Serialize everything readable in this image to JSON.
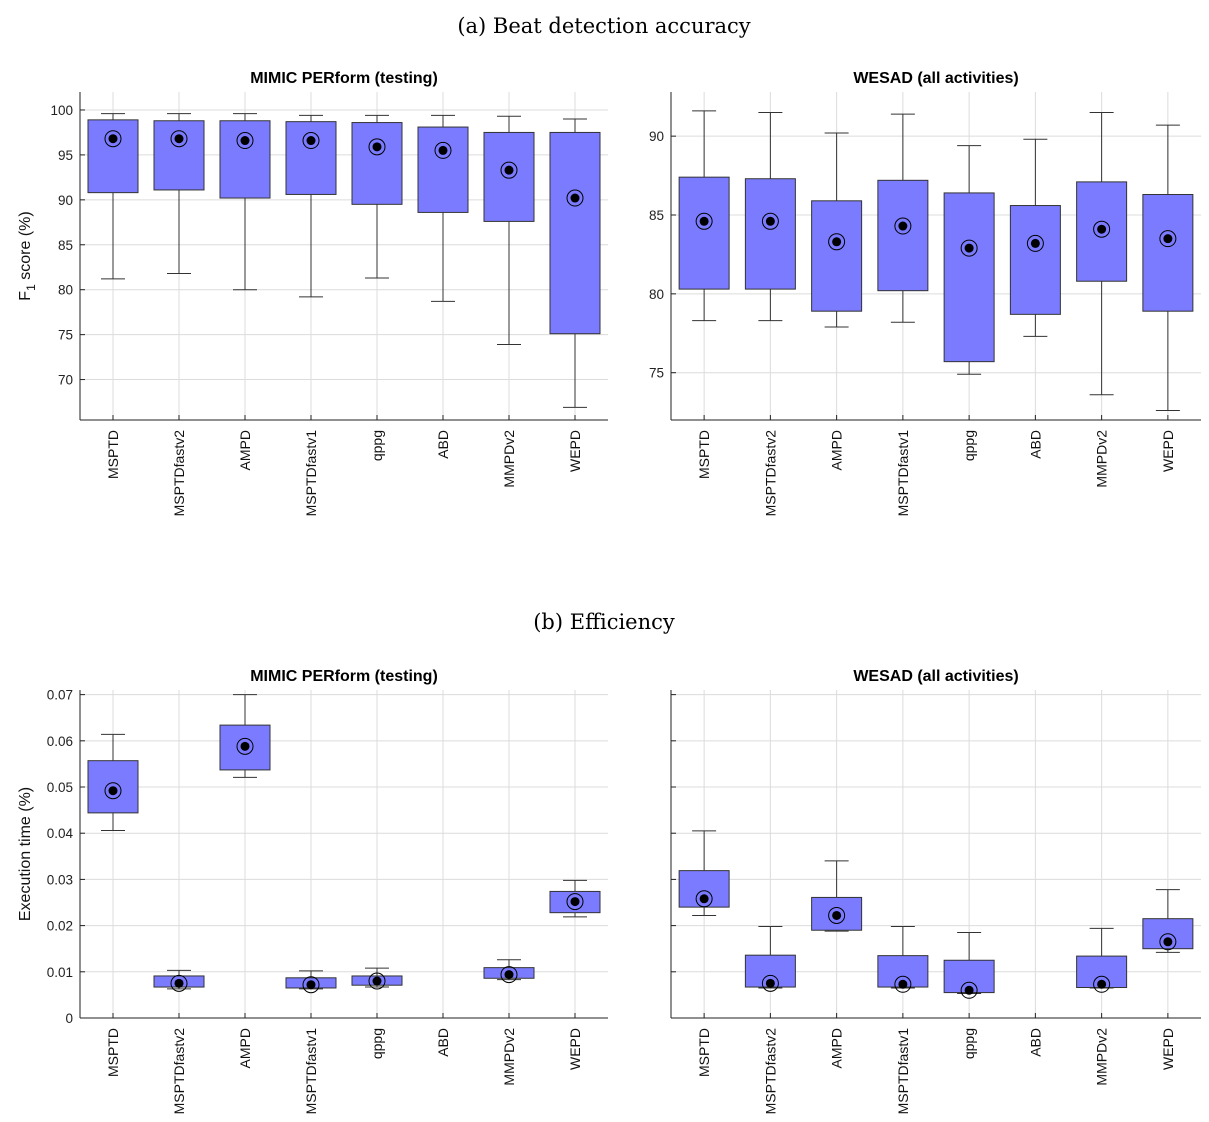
{
  "sections": [
    {
      "title": "(a) Beat detection accuracy"
    },
    {
      "title": "(b) Efficiency"
    }
  ],
  "chart_data": [
    {
      "type": "box",
      "title": "MIMIC PERform (testing)",
      "ylabel": "F1 score (%)",
      "ylabel_main": "F",
      "ylabel_sub": "1",
      "ylabel_rest": " score (%)",
      "ylim": [
        65.5,
        102
      ],
      "yticks": [
        70,
        75,
        80,
        85,
        90,
        95,
        100
      ],
      "ytick_labels": [
        "70",
        "75",
        "80",
        "85",
        "90",
        "95",
        "100"
      ],
      "grid": true,
      "categories": [
        "MSPTD",
        "MSPTDfastv2",
        "AMPD",
        "MSPTDfastv1",
        "qppg",
        "ABD",
        "MMPDv2",
        "WEPD"
      ],
      "boxes": [
        {
          "min": 81.2,
          "q1": 90.8,
          "median": 96.8,
          "q3": 98.9,
          "max": 99.6
        },
        {
          "min": 81.8,
          "q1": 91.1,
          "median": 96.8,
          "q3": 98.8,
          "max": 99.6
        },
        {
          "min": 80.0,
          "q1": 90.2,
          "median": 96.6,
          "q3": 98.8,
          "max": 99.6
        },
        {
          "min": 79.2,
          "q1": 90.6,
          "median": 96.6,
          "q3": 98.7,
          "max": 99.4
        },
        {
          "min": 81.3,
          "q1": 89.5,
          "median": 95.9,
          "q3": 98.6,
          "max": 99.4
        },
        {
          "min": 78.7,
          "q1": 88.6,
          "median": 95.5,
          "q3": 98.1,
          "max": 99.4
        },
        {
          "min": 73.9,
          "q1": 87.6,
          "median": 93.3,
          "q3": 97.5,
          "max": 99.3
        },
        {
          "min": 66.9,
          "q1": 75.1,
          "median": 90.2,
          "q3": 97.5,
          "max": 99.0
        }
      ]
    },
    {
      "type": "box",
      "title": "WESAD (all activities)",
      "ylabel": "",
      "ylim": [
        72.0,
        92.8
      ],
      "yticks": [
        75,
        80,
        85,
        90
      ],
      "ytick_labels": [
        "75",
        "80",
        "85",
        "90"
      ],
      "grid": true,
      "categories": [
        "MSPTD",
        "MSPTDfastv2",
        "AMPD",
        "MSPTDfastv1",
        "qppg",
        "ABD",
        "MMPDv2",
        "WEPD"
      ],
      "boxes": [
        {
          "min": 78.3,
          "q1": 80.3,
          "median": 84.6,
          "q3": 87.4,
          "max": 91.6
        },
        {
          "min": 78.3,
          "q1": 80.3,
          "median": 84.6,
          "q3": 87.3,
          "max": 91.5
        },
        {
          "min": 77.9,
          "q1": 78.9,
          "median": 83.3,
          "q3": 85.9,
          "max": 90.2
        },
        {
          "min": 78.2,
          "q1": 80.2,
          "median": 84.3,
          "q3": 87.2,
          "max": 91.4
        },
        {
          "min": 74.9,
          "q1": 75.7,
          "median": 82.9,
          "q3": 86.4,
          "max": 89.4
        },
        {
          "min": 77.3,
          "q1": 78.7,
          "median": 83.2,
          "q3": 85.6,
          "max": 89.8
        },
        {
          "min": 73.6,
          "q1": 80.8,
          "median": 84.1,
          "q3": 87.1,
          "max": 91.5
        },
        {
          "min": 72.6,
          "q1": 78.9,
          "median": 83.5,
          "q3": 86.3,
          "max": 90.7
        }
      ]
    },
    {
      "type": "box",
      "title": "MIMIC PERform (testing)",
      "ylabel": "Execution time (%)",
      "ylim": [
        0,
        0.071
      ],
      "yticks": [
        0,
        0.01,
        0.02,
        0.03,
        0.04,
        0.05,
        0.06,
        0.07
      ],
      "ytick_labels": [
        "0",
        "0.01",
        "0.02",
        "0.03",
        "0.04",
        "0.05",
        "0.06",
        "0.07"
      ],
      "grid": true,
      "categories": [
        "MSPTD",
        "MSPTDfastv2",
        "AMPD",
        "MSPTDfastv1",
        "qppg",
        "ABD",
        "MMPDv2",
        "WEPD"
      ],
      "boxes": [
        {
          "min": 0.0406,
          "q1": 0.0444,
          "median": 0.0492,
          "q3": 0.0557,
          "max": 0.0614
        },
        {
          "min": 0.0063,
          "q1": 0.0067,
          "median": 0.0075,
          "q3": 0.0091,
          "max": 0.0103
        },
        {
          "min": 0.0521,
          "q1": 0.0537,
          "median": 0.0588,
          "q3": 0.0634,
          "max": 0.07
        },
        {
          "min": 0.0063,
          "q1": 0.0065,
          "median": 0.0072,
          "q3": 0.0087,
          "max": 0.0102
        },
        {
          "min": 0.0067,
          "q1": 0.0071,
          "median": 0.008,
          "q3": 0.0091,
          "max": 0.0108
        },
        null,
        {
          "min": 0.0083,
          "q1": 0.0086,
          "median": 0.0094,
          "q3": 0.0109,
          "max": 0.0126
        },
        {
          "min": 0.0219,
          "q1": 0.0228,
          "median": 0.0252,
          "q3": 0.0274,
          "max": 0.0298
        }
      ]
    },
    {
      "type": "box",
      "title": "WESAD (all activities)",
      "ylabel": "",
      "ylim": [
        0,
        0.071
      ],
      "yticks": [
        0,
        0.01,
        0.02,
        0.03,
        0.04,
        0.05,
        0.06,
        0.07
      ],
      "ytick_labels": [
        "",
        "",
        "",
        "",
        "",
        "",
        "",
        ""
      ],
      "grid": true,
      "categories": [
        "MSPTD",
        "MSPTDfastv2",
        "AMPD",
        "MSPTDfastv1",
        "qppg",
        "ABD",
        "MMPDv2",
        "WEPD"
      ],
      "boxes": [
        {
          "min": 0.0222,
          "q1": 0.024,
          "median": 0.0258,
          "q3": 0.0319,
          "max": 0.0405
        },
        {
          "min": 0.0065,
          "q1": 0.0067,
          "median": 0.0075,
          "q3": 0.0136,
          "max": 0.0198
        },
        {
          "min": 0.0188,
          "q1": 0.019,
          "median": 0.0222,
          "q3": 0.0261,
          "max": 0.034
        },
        {
          "min": 0.0065,
          "q1": 0.0067,
          "median": 0.0073,
          "q3": 0.0135,
          "max": 0.0198
        },
        {
          "min": 0.0053,
          "q1": 0.0055,
          "median": 0.006,
          "q3": 0.0125,
          "max": 0.0185
        },
        null,
        {
          "min": 0.0065,
          "q1": 0.0066,
          "median": 0.0073,
          "q3": 0.0134,
          "max": 0.0194
        },
        {
          "min": 0.0142,
          "q1": 0.015,
          "median": 0.0165,
          "q3": 0.0215,
          "max": 0.0278
        }
      ]
    }
  ],
  "colors": {
    "box_fill": "#7b7bff",
    "box_edge": "#333333",
    "median_marker": "#000000",
    "grid": "#dcdcdc"
  }
}
